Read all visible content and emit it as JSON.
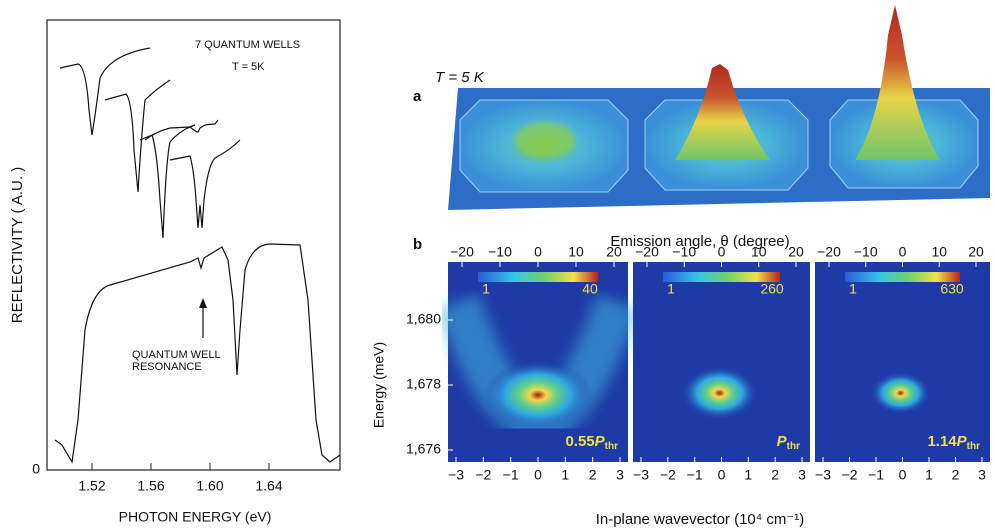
{
  "left": {
    "annotation_title": "7 QUANTUM WELLS",
    "annotation_temperature": "T = 5K",
    "resonance_line1": "QUANTUM WELL",
    "resonance_line2": "RESONANCE",
    "y_axis_label": "REFLECTIVITY  ( A.U. )",
    "y_zero": "0",
    "x_axis_label": "PHOTON  ENERGY  (eV)",
    "xticks": [
      "1.52",
      "1.56",
      "1.60",
      "1.64"
    ]
  },
  "right": {
    "panel_a": {
      "label": "a",
      "temperature": "T = 5 K"
    },
    "panel_b": {
      "label": "b",
      "top_axis_label": "Emission angle, θ (degree)",
      "top_ticks": [
        "−20",
        "−10",
        "0",
        "10",
        "20"
      ],
      "y_axis_label": "Energy (meV)",
      "yticks": [
        "1,680",
        "1,678",
        "1,676"
      ],
      "x_axis_label": "In-plane wavevector (10⁴ cm⁻¹)",
      "xticks": [
        "−3",
        "−2",
        "−1",
        "0",
        "1",
        "2",
        "3"
      ],
      "maps": [
        {
          "colorbar_min": "1",
          "colorbar_max": "40",
          "power_factor": "0.55",
          "power_symbol": "P",
          "power_subscript": "thr"
        },
        {
          "colorbar_min": "1",
          "colorbar_max": "260",
          "power_symbol": "P",
          "power_subscript": "thr"
        },
        {
          "colorbar_min": "1",
          "colorbar_max": "630",
          "power_factor": "1.14",
          "power_symbol": "P",
          "power_subscript": "thr"
        }
      ]
    }
  }
}
